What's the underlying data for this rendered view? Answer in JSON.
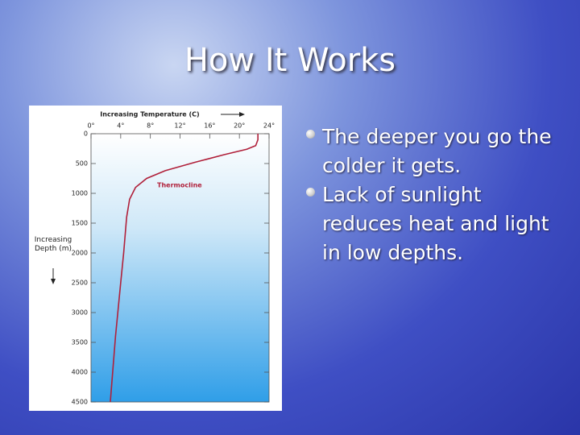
{
  "title": "How It Works",
  "bullets": [
    "The deeper you go the colder it gets.",
    "Lack of sunlight reduces heat and light in low depths."
  ],
  "chart_data": {
    "type": "line",
    "x_label": "Increasing Temperature (C)",
    "y_label": "Increasing Depth (m)",
    "annotation": "Thermocline",
    "x": [
      22.5,
      22.5,
      22.2,
      21,
      18,
      14,
      10,
      7.5,
      6,
      5.2,
      4.8,
      4.4,
      4,
      3.3,
      2.6
    ],
    "values": [
      0,
      100,
      200,
      260,
      350,
      480,
      620,
      750,
      900,
      1100,
      1400,
      2000,
      2500,
      3400,
      4500
    ],
    "color": "#b0203a",
    "xlim": [
      0,
      24
    ],
    "xticks": [
      {
        "value": 0,
        "label": "0°"
      },
      {
        "value": 4,
        "label": "4°"
      },
      {
        "value": 8,
        "label": "8°"
      },
      {
        "value": 12,
        "label": "12°"
      },
      {
        "value": 16,
        "label": "16°"
      },
      {
        "value": 20,
        "label": "20°"
      },
      {
        "value": 24,
        "label": "24°"
      }
    ],
    "ylim": [
      0,
      4500
    ],
    "yticks": [
      0,
      500,
      1000,
      1500,
      2000,
      2500,
      3000,
      3500,
      4000,
      4500
    ],
    "y_inverted": true
  }
}
